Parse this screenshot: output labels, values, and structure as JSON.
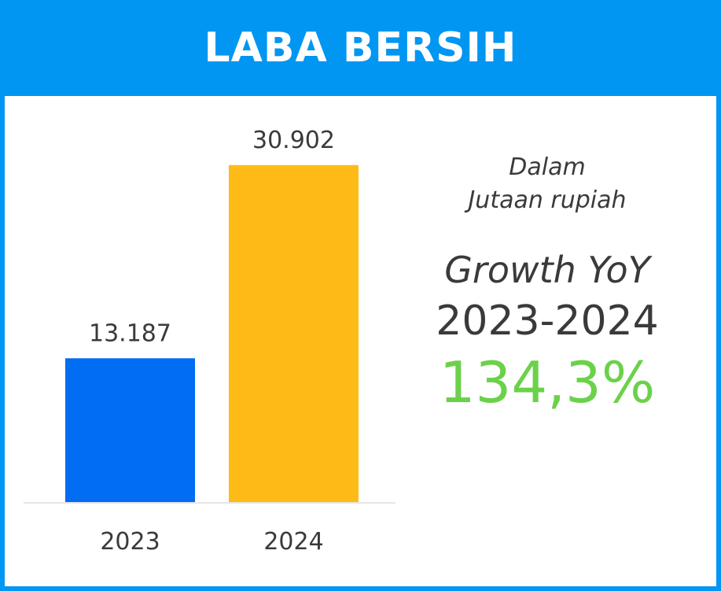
{
  "header": {
    "title": "LABA BERSIH"
  },
  "info": {
    "unit_line1": "Dalam",
    "unit_line2": "Jutaan rupiah",
    "growth_label": "Growth YoY",
    "growth_period": "2023-2024",
    "growth_value": "134,3%"
  },
  "colors": {
    "header_bg": "#0096f2",
    "bar_2023": "#006df2",
    "bar_2024": "#febb18",
    "growth": "#6cd14a"
  },
  "chart_data": {
    "type": "bar",
    "categories": [
      "2023",
      "2024"
    ],
    "values": [
      13187,
      30902
    ],
    "data_labels": [
      "13.187",
      "30.902"
    ],
    "bar_colors": [
      "#006df2",
      "#febb18"
    ],
    "ylim": [
      0,
      35000
    ],
    "grid": false
  }
}
